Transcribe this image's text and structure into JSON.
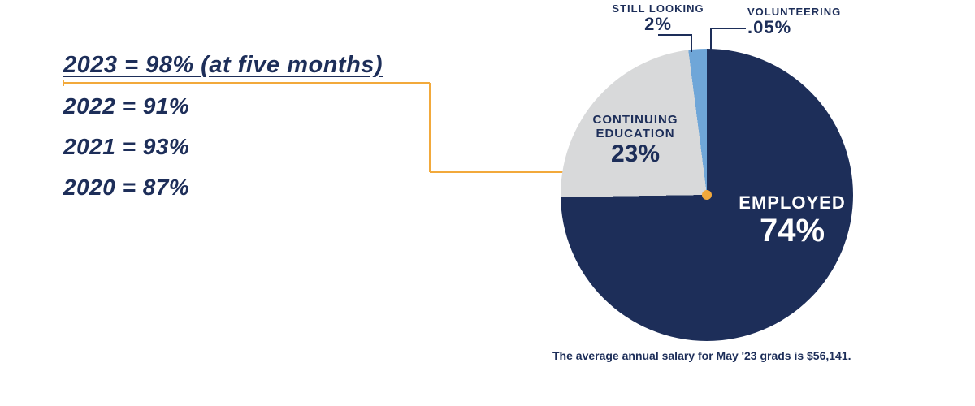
{
  "years": {
    "featured": "2023 = 98% (at five months)",
    "r1": "2022 = 91%",
    "r2": "2021 = 93%",
    "r3": "2020 = 87%"
  },
  "bracket": {
    "color": "#f2a93b",
    "stroke_width": 2
  },
  "pie": {
    "type": "pie",
    "center_dot_color": "#f2a93b",
    "slices": [
      {
        "key": "employed",
        "label": "EMPLOYED",
        "pct_text": "74%",
        "value": 74,
        "color": "#1d2e59"
      },
      {
        "key": "continuing",
        "label": "CONTINUING EDUCATION",
        "pct_text": "23%",
        "value": 23,
        "color": "#d8d9da"
      },
      {
        "key": "still",
        "label": "STILL LOOKING",
        "pct_text": "2%",
        "value": 2,
        "color": "#6fa6d8"
      },
      {
        "key": "volunteer",
        "label": "VOLUNTEERING",
        "pct_text": ".05%",
        "value": 0.05,
        "color": "#1d2e59"
      }
    ],
    "label_colors": {
      "employed_text": "#ffffff",
      "continuing_text": "#1d2e59",
      "top_text": "#1d2e59"
    },
    "fonts": {
      "big_pct": 40,
      "big_cat": 22,
      "mid_pct": 30,
      "mid_cat": 15,
      "small_cat": 13,
      "small_pct": 22
    }
  },
  "footnote": "The average annual salary for May '23 grads is $56,141.",
  "colors": {
    "navy": "#1d2e59",
    "gold": "#f2a93b",
    "grey": "#d8d9da",
    "lightblue": "#6fa6d8",
    "white": "#ffffff",
    "background": "#ffffff"
  }
}
